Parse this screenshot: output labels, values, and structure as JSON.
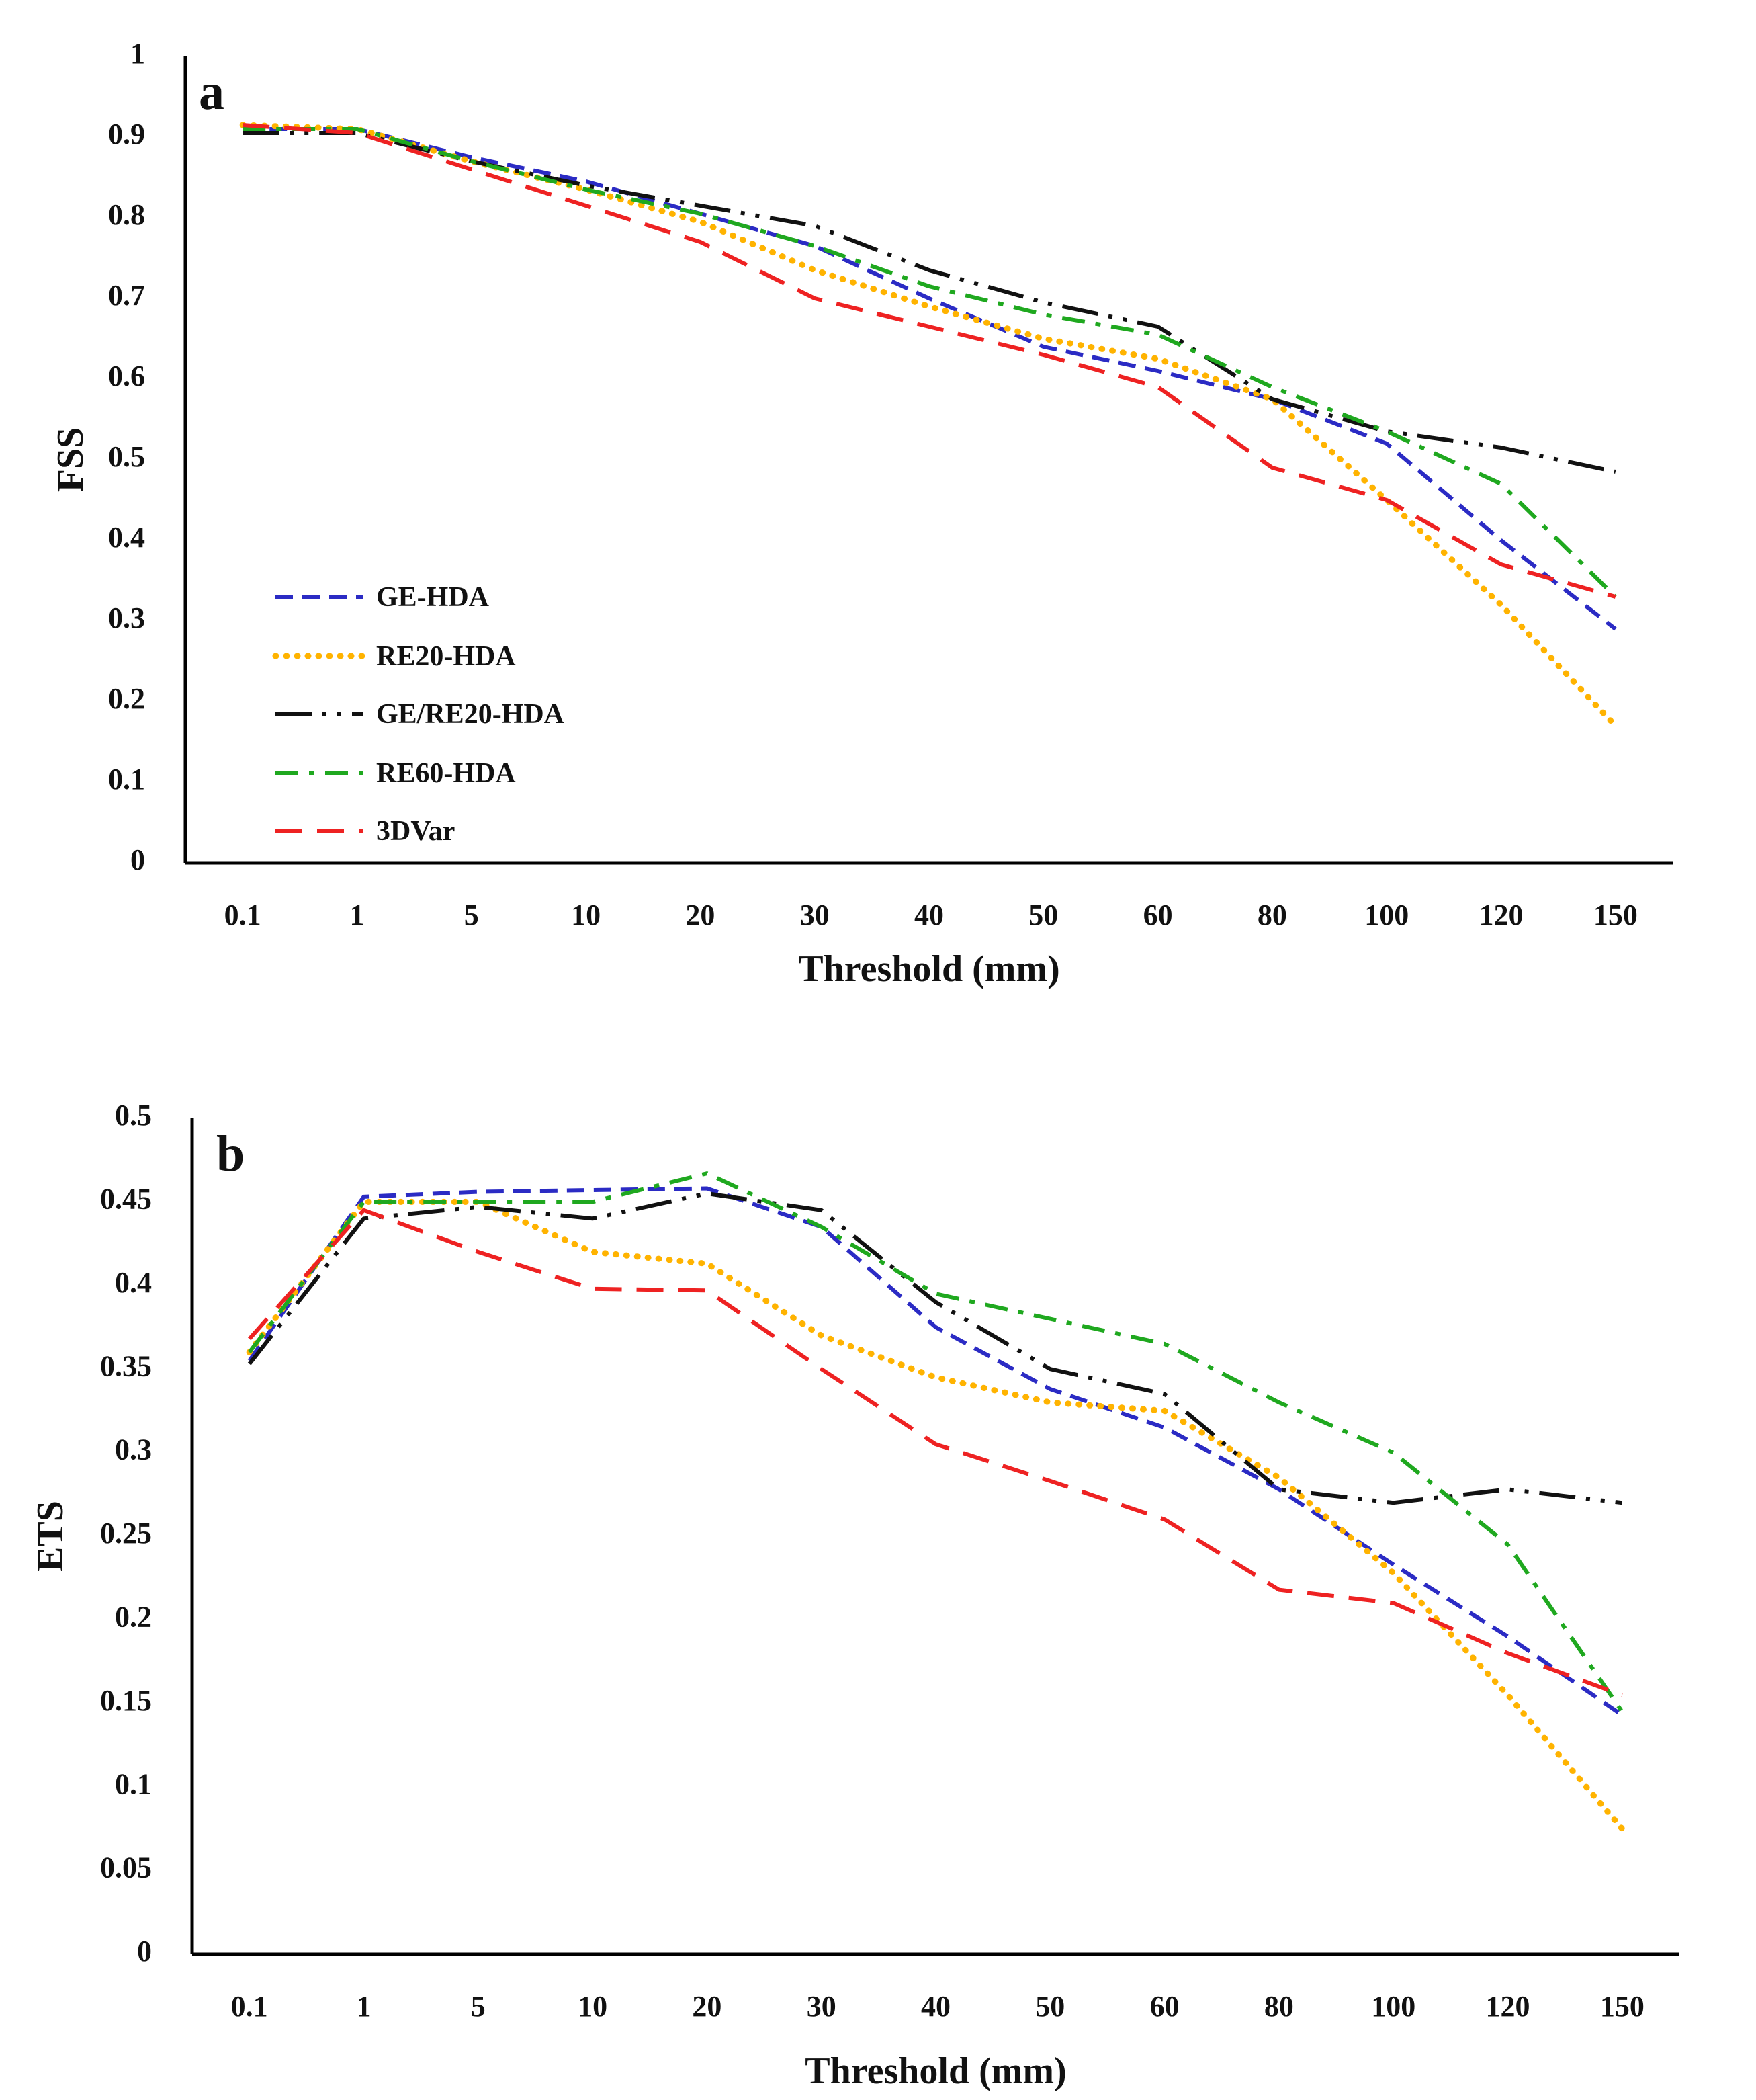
{
  "chart_data": [
    {
      "type": "line",
      "panel_label": "a",
      "title": "",
      "xlabel": "Threshold (mm)",
      "ylabel": "FSS",
      "categories": [
        "0.1",
        "1",
        "5",
        "10",
        "20",
        "30",
        "40",
        "50",
        "60",
        "80",
        "100",
        "120",
        "150"
      ],
      "ylim": [
        0,
        1
      ],
      "yticks": [
        0,
        0.1,
        0.2,
        0.3,
        0.4,
        0.5,
        0.6,
        0.7,
        0.8,
        0.9,
        1
      ],
      "ytick_labels": [
        "0",
        "0.1",
        "0.2",
        "0.3",
        "0.4",
        "0.5",
        "0.6",
        "0.7",
        "0.8",
        "0.9",
        "1"
      ],
      "grid": false,
      "legend": "bottom-left",
      "series": [
        {
          "name": "GE-HDA",
          "color": "#2b2bc4",
          "style": "dashed",
          "values": [
            0.91,
            0.91,
            0.875,
            0.845,
            0.805,
            0.765,
            0.7,
            0.64,
            0.61,
            0.575,
            0.52,
            0.4,
            0.29
          ]
        },
        {
          "name": "RE20-HDA",
          "color": "#ffb300",
          "style": "dotted",
          "values": [
            0.915,
            0.91,
            0.87,
            0.835,
            0.795,
            0.735,
            0.69,
            0.65,
            0.625,
            0.575,
            0.45,
            0.32,
            0.17
          ]
        },
        {
          "name": "GE/RE20-HDA",
          "color": "#111111",
          "style": "dashdotdot",
          "values": [
            0.905,
            0.905,
            0.87,
            0.84,
            0.815,
            0.79,
            0.735,
            0.695,
            0.665,
            0.575,
            0.535,
            0.515,
            0.485
          ]
        },
        {
          "name": "RE60-HDA",
          "color": "#1fa81f",
          "style": "dashdot",
          "values": [
            0.91,
            0.91,
            0.87,
            0.835,
            0.805,
            0.765,
            0.715,
            0.68,
            0.655,
            0.59,
            0.535,
            0.47,
            0.33
          ]
        },
        {
          "name": "3DVar",
          "color": "#ee2222",
          "style": "longdash",
          "values": [
            0.915,
            0.905,
            0.86,
            0.815,
            0.77,
            0.7,
            0.665,
            0.63,
            0.59,
            0.49,
            0.45,
            0.37,
            0.33
          ]
        }
      ]
    },
    {
      "type": "line",
      "panel_label": "b",
      "title": "",
      "xlabel": "Threshold (mm)",
      "ylabel": "ETS",
      "categories": [
        "0.1",
        "1",
        "5",
        "10",
        "20",
        "30",
        "40",
        "50",
        "60",
        "80",
        "100",
        "120",
        "150"
      ],
      "ylim": [
        0,
        0.5
      ],
      "yticks": [
        0,
        0.05,
        0.1,
        0.15,
        0.2,
        0.25,
        0.3,
        0.35,
        0.4,
        0.45,
        0.5
      ],
      "ytick_labels": [
        "0",
        "0.05",
        "0.1",
        "0.15",
        "0.2",
        "0.25",
        "0.3",
        "0.35",
        "0.4",
        "0.45",
        "0.5"
      ],
      "grid": false,
      "legend": "none",
      "series": [
        {
          "name": "GE-HDA",
          "color": "#2b2bc4",
          "style": "dashed",
          "values": [
            0.355,
            0.453,
            0.456,
            0.457,
            0.458,
            0.435,
            0.375,
            0.338,
            0.315,
            0.278,
            0.233,
            0.19,
            0.143
          ]
        },
        {
          "name": "RE20-HDA",
          "color": "#ffb300",
          "style": "dotted",
          "values": [
            0.36,
            0.45,
            0.45,
            0.42,
            0.413,
            0.37,
            0.345,
            0.33,
            0.325,
            0.285,
            0.228,
            0.155,
            0.075
          ]
        },
        {
          "name": "GE/RE20-HDA",
          "color": "#111111",
          "style": "dashdotdot",
          "values": [
            0.353,
            0.44,
            0.447,
            0.44,
            0.455,
            0.445,
            0.39,
            0.35,
            0.335,
            0.278,
            0.27,
            0.278,
            0.27
          ]
        },
        {
          "name": "RE60-HDA",
          "color": "#1fa81f",
          "style": "dashdot",
          "values": [
            0.36,
            0.45,
            0.45,
            0.45,
            0.467,
            0.435,
            0.395,
            0.38,
            0.365,
            0.33,
            0.3,
            0.245,
            0.145
          ]
        },
        {
          "name": "3DVar",
          "color": "#ee2222",
          "style": "longdash",
          "values": [
            0.368,
            0.445,
            0.42,
            0.398,
            0.397,
            0.35,
            0.305,
            0.283,
            0.26,
            0.218,
            0.21,
            0.18,
            0.155
          ]
        }
      ]
    }
  ]
}
